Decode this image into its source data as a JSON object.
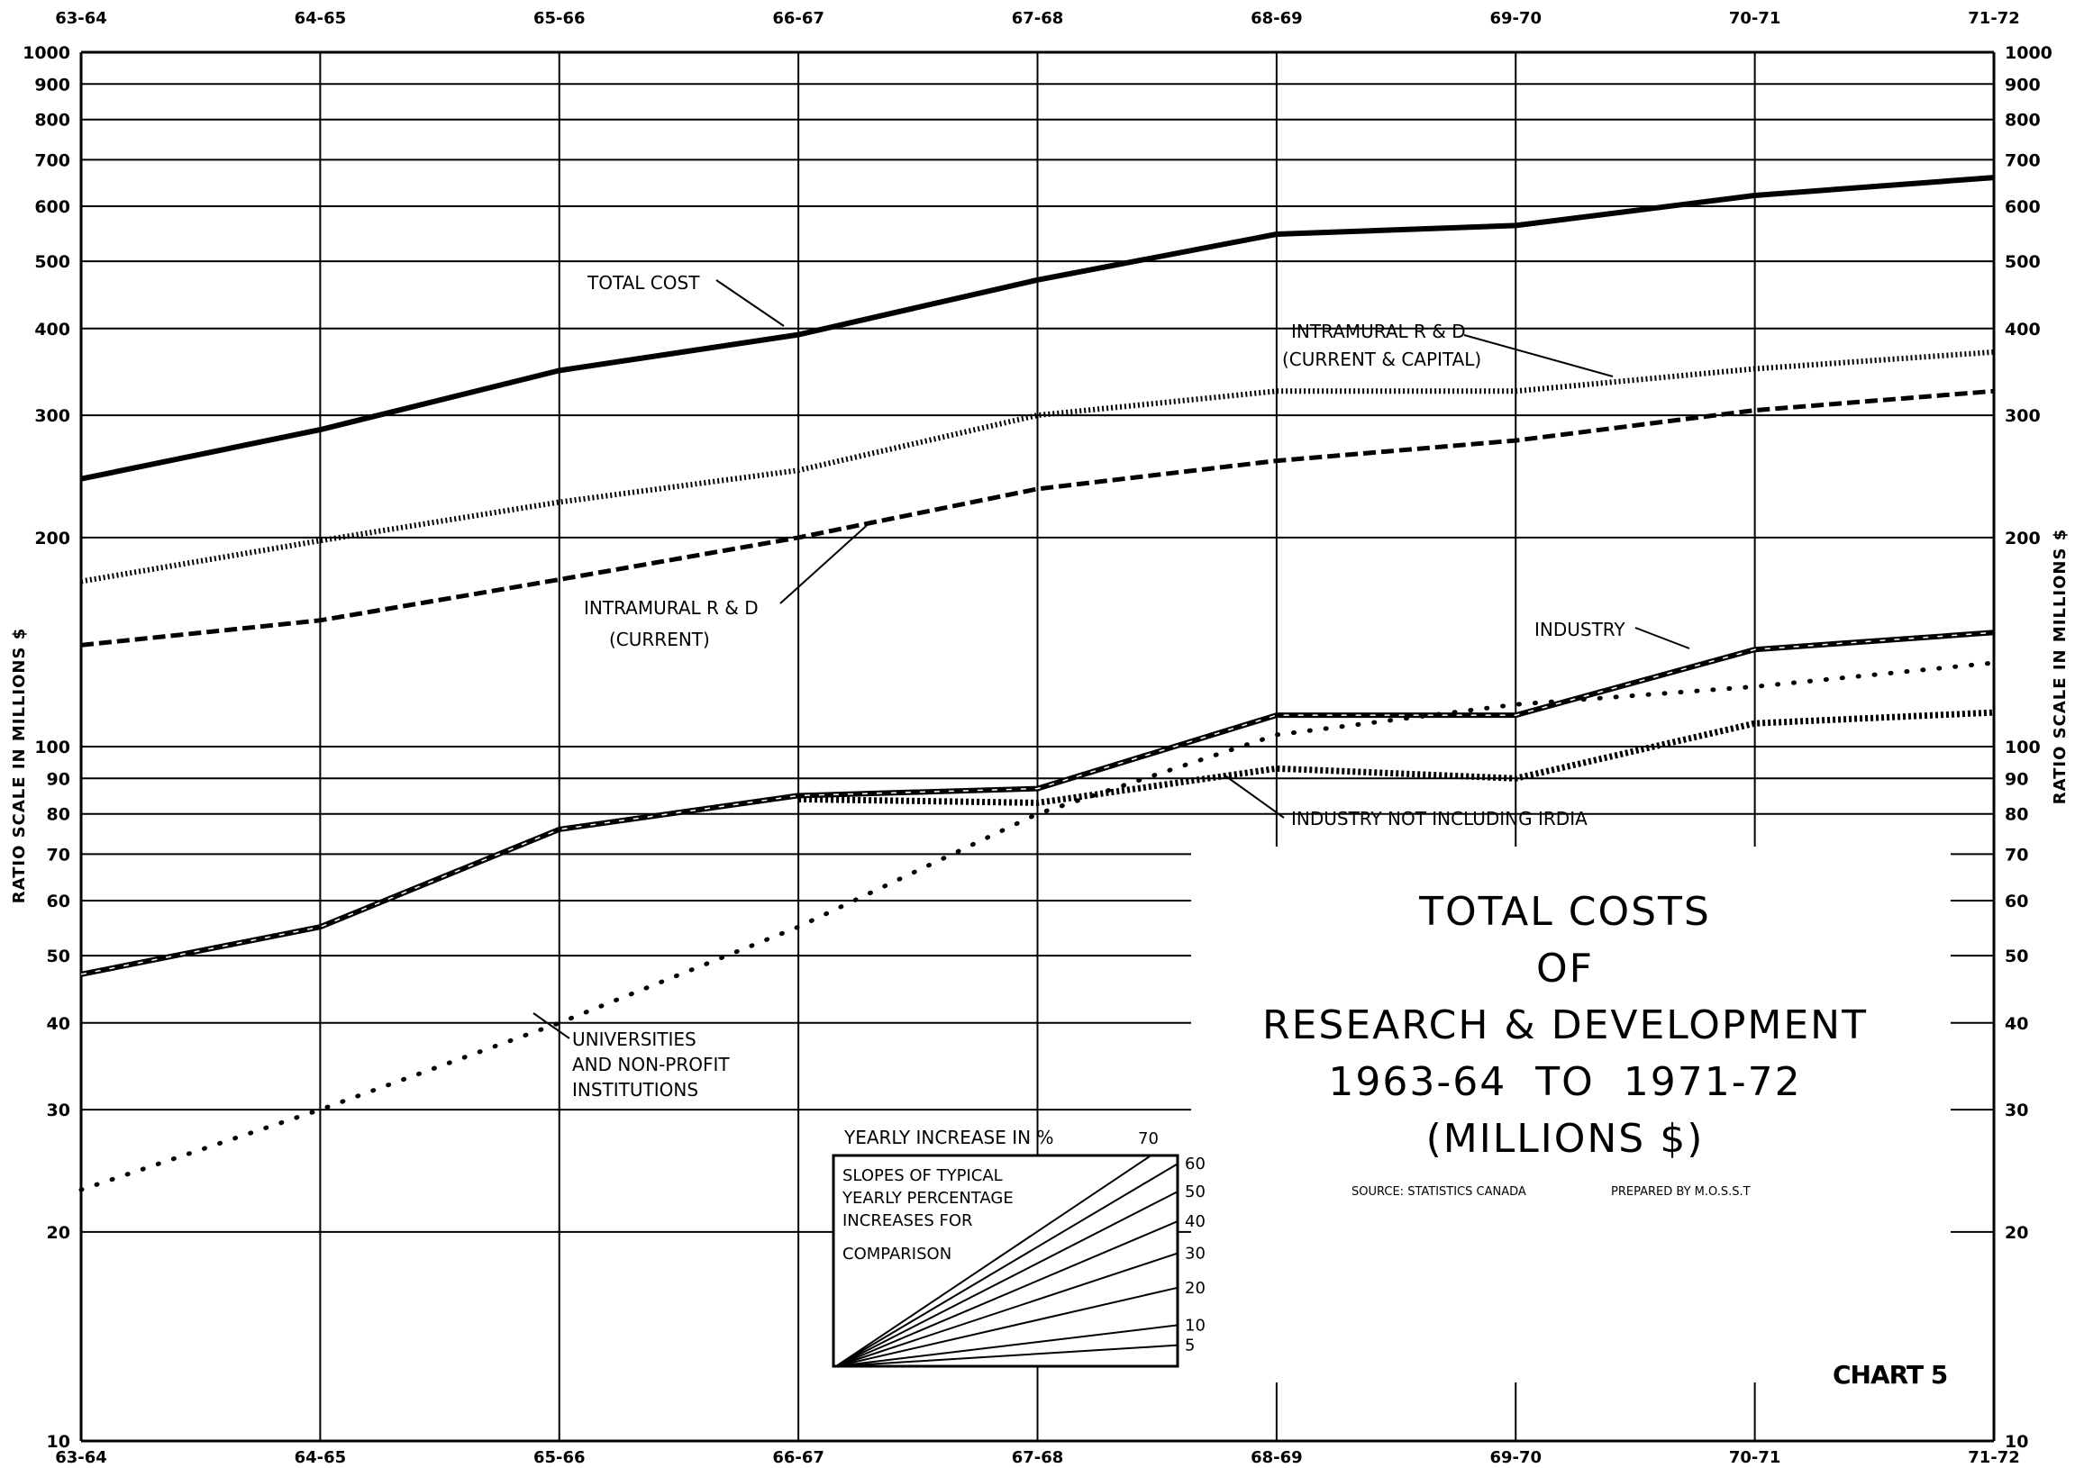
{
  "chart_data": {
    "type": "line",
    "y_scale": "log",
    "ylim": [
      10,
      1000
    ],
    "y_ticks": [
      10,
      20,
      30,
      40,
      50,
      60,
      70,
      80,
      90,
      100,
      200,
      300,
      400,
      500,
      600,
      700,
      800,
      900,
      1000
    ],
    "y_tick_labels_left": [
      "10",
      "20",
      "30",
      "40",
      "50",
      "60",
      "70",
      "80",
      "90",
      "100",
      "200",
      "300",
      "400",
      "500",
      "600",
      "700",
      "800",
      "900",
      "1000"
    ],
    "y_tick_labels_right": [
      "10",
      "20",
      "30",
      "40",
      "50",
      "60",
      "70",
      "80",
      "90",
      "100",
      "200",
      "300",
      "400",
      "500",
      "600",
      "700",
      "800",
      "900",
      "1000"
    ],
    "ylabel_left": "RATIO SCALE IN MILLIONS $",
    "ylabel_right": "RATIO SCALE IN MILLIONS $",
    "categories": [
      "63-64",
      "64-65",
      "65-66",
      "66-67",
      "67-68",
      "68-69",
      "69-70",
      "70-71",
      "71-72"
    ],
    "series": [
      {
        "name": "TOTAL COST",
        "style": "solid-thick",
        "values": [
          243,
          286,
          348,
          392,
          470,
          547,
          563,
          622,
          660
        ]
      },
      {
        "name": "INTRAMURAL R & D (CURRENT & CAPITAL)",
        "style": "dense-dotted",
        "values": [
          173,
          198,
          225,
          250,
          300,
          325,
          325,
          350,
          370
        ]
      },
      {
        "name": "INTRAMURAL R & D (CURRENT)",
        "style": "dashed",
        "values": [
          140,
          152,
          174,
          200,
          235,
          258,
          276,
          305,
          325
        ]
      },
      {
        "name": "INDUSTRY",
        "style": "solid-hatched",
        "values": [
          47,
          55,
          76,
          85,
          87,
          111,
          111,
          138,
          146
        ]
      },
      {
        "name": "INDUSTRY NOT INCLUDING IRDIA",
        "style": "zigzag",
        "values": [
          null,
          null,
          null,
          84,
          83,
          93,
          90,
          108,
          112
        ]
      },
      {
        "name": "UNIVERSITIES AND NON-PROFIT INSTITUTIONS",
        "style": "sparse-dotted",
        "values": [
          23,
          30,
          40,
          55,
          80,
          104,
          115,
          122,
          132
        ]
      }
    ],
    "annotations": {
      "total_cost": "TOTAL COST",
      "intramural_cc_line1": "INTRAMURAL R & D",
      "intramural_cc_line2": "(CURRENT & CAPITAL)",
      "intramural_c_line1": "INTRAMURAL R & D",
      "intramural_c_line2": "(CURRENT)",
      "industry": "INDUSTRY",
      "industry_not_irdia": "INDUSTRY NOT INCLUDING IRDIA",
      "universities_line1": "UNIVERSITIES",
      "universities_line2": "AND NON-PROFIT",
      "universities_line3": "INSTITUTIONS"
    },
    "title_lines": [
      "TOTAL COSTS",
      "OF",
      "RESEARCH & DEVELOPMENT",
      "1963-64 TO 1971-72",
      "(MILLIONS $)"
    ],
    "source": "SOURCE: STATISTICS CANADA",
    "prepared_by": "PREPARED BY M.O.S.S.T",
    "chart_number": "CHART 5",
    "inset": {
      "title": "YEARLY INCREASE IN %",
      "title_extra": "70",
      "description": [
        "SLOPES OF TYPICAL",
        "YEARLY PERCENTAGE",
        "INCREASES FOR",
        "COMPARISON"
      ],
      "rates": [
        5,
        10,
        20,
        30,
        40,
        50,
        60
      ],
      "rate_labels": [
        "5",
        "10",
        "20",
        "30",
        "40",
        "50",
        "60"
      ]
    },
    "grid": true
  }
}
